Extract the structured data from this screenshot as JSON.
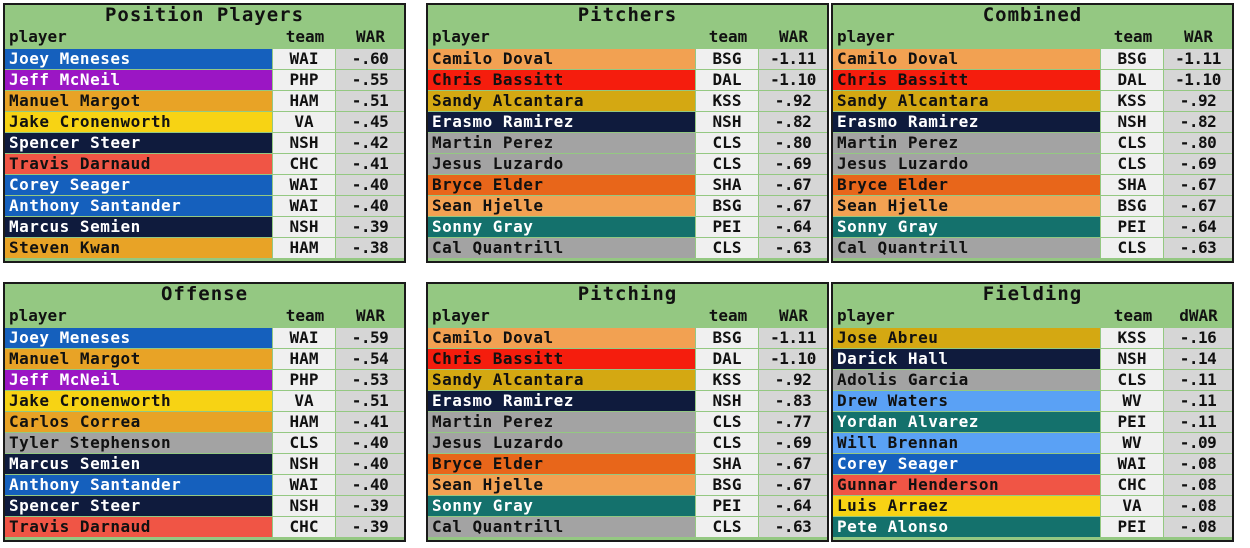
{
  "panels": [
    {
      "title": "Position Players",
      "headers": {
        "player": "player",
        "team": "team",
        "stat": "WAR"
      },
      "rows": [
        {
          "name": "Joey Meneses",
          "team": "WAI",
          "value": "-.60",
          "bg": "#1560bd",
          "fg": "#ffffff"
        },
        {
          "name": "Jeff McNeil",
          "team": "PHP",
          "value": "-.55",
          "bg": "#9b16c4",
          "fg": "#ffffff"
        },
        {
          "name": "Manuel Margot",
          "team": "HAM",
          "value": "-.51",
          "bg": "#e8a326",
          "fg": "#111111"
        },
        {
          "name": "Jake Cronenworth",
          "team": "VA",
          "value": "-.45",
          "bg": "#f7d314",
          "fg": "#111111"
        },
        {
          "name": "Spencer Steer",
          "team": "NSH",
          "value": "-.42",
          "bg": "#0f1b3d",
          "fg": "#ffffff"
        },
        {
          "name": "Travis Darnaud",
          "team": "CHC",
          "value": "-.41",
          "bg": "#f05545",
          "fg": "#111111"
        },
        {
          "name": "Corey Seager",
          "team": "WAI",
          "value": "-.40",
          "bg": "#1560bd",
          "fg": "#ffffff"
        },
        {
          "name": "Anthony Santander",
          "team": "WAI",
          "value": "-.40",
          "bg": "#1560bd",
          "fg": "#ffffff"
        },
        {
          "name": "Marcus Semien",
          "team": "NSH",
          "value": "-.39",
          "bg": "#0f1b3d",
          "fg": "#ffffff"
        },
        {
          "name": "Steven Kwan",
          "team": "HAM",
          "value": "-.38",
          "bg": "#e8a326",
          "fg": "#111111"
        }
      ]
    },
    {
      "title": "Pitchers",
      "headers": {
        "player": "player",
        "team": "team",
        "stat": "WAR"
      },
      "rows": [
        {
          "name": "Camilo Doval",
          "team": "BSG",
          "value": "-1.11",
          "bg": "#f2a152",
          "fg": "#111111"
        },
        {
          "name": "Chris Bassitt",
          "team": "DAL",
          "value": "-1.10",
          "bg": "#f51d0d",
          "fg": "#111111"
        },
        {
          "name": "Sandy Alcantara",
          "team": "KSS",
          "value": "-.92",
          "bg": "#d4a812",
          "fg": "#111111"
        },
        {
          "name": "Erasmo Ramirez",
          "team": "NSH",
          "value": "-.82",
          "bg": "#0f1b3d",
          "fg": "#ffffff"
        },
        {
          "name": "Martin Perez",
          "team": "CLS",
          "value": "-.80",
          "bg": "#a3a3a3",
          "fg": "#111111"
        },
        {
          "name": "Jesus Luzardo",
          "team": "CLS",
          "value": "-.69",
          "bg": "#a3a3a3",
          "fg": "#111111"
        },
        {
          "name": "Bryce Elder",
          "team": "SHA",
          "value": "-.67",
          "bg": "#e8661a",
          "fg": "#111111"
        },
        {
          "name": "Sean Hjelle",
          "team": "BSG",
          "value": "-.67",
          "bg": "#f2a152",
          "fg": "#111111"
        },
        {
          "name": "Sonny Gray",
          "team": "PEI",
          "value": "-.64",
          "bg": "#14716c",
          "fg": "#ffffff"
        },
        {
          "name": "Cal Quantrill",
          "team": "CLS",
          "value": "-.63",
          "bg": "#a3a3a3",
          "fg": "#111111"
        }
      ]
    },
    {
      "title": "Combined",
      "headers": {
        "player": "player",
        "team": "team",
        "stat": "WAR"
      },
      "rows": [
        {
          "name": "Camilo Doval",
          "team": "BSG",
          "value": "-1.11",
          "bg": "#f2a152",
          "fg": "#111111"
        },
        {
          "name": "Chris Bassitt",
          "team": "DAL",
          "value": "-1.10",
          "bg": "#f51d0d",
          "fg": "#111111"
        },
        {
          "name": "Sandy Alcantara",
          "team": "KSS",
          "value": "-.92",
          "bg": "#d4a812",
          "fg": "#111111"
        },
        {
          "name": "Erasmo Ramirez",
          "team": "NSH",
          "value": "-.82",
          "bg": "#0f1b3d",
          "fg": "#ffffff"
        },
        {
          "name": "Martin Perez",
          "team": "CLS",
          "value": "-.80",
          "bg": "#a3a3a3",
          "fg": "#111111"
        },
        {
          "name": "Jesus Luzardo",
          "team": "CLS",
          "value": "-.69",
          "bg": "#a3a3a3",
          "fg": "#111111"
        },
        {
          "name": "Bryce Elder",
          "team": "SHA",
          "value": "-.67",
          "bg": "#e8661a",
          "fg": "#111111"
        },
        {
          "name": "Sean Hjelle",
          "team": "BSG",
          "value": "-.67",
          "bg": "#f2a152",
          "fg": "#111111"
        },
        {
          "name": "Sonny Gray",
          "team": "PEI",
          "value": "-.64",
          "bg": "#14716c",
          "fg": "#ffffff"
        },
        {
          "name": "Cal Quantrill",
          "team": "CLS",
          "value": "-.63",
          "bg": "#a3a3a3",
          "fg": "#111111"
        }
      ]
    },
    {
      "title": "Offense",
      "headers": {
        "player": "player",
        "team": "team",
        "stat": "WAR"
      },
      "rows": [
        {
          "name": "Joey Meneses",
          "team": "WAI",
          "value": "-.59",
          "bg": "#1560bd",
          "fg": "#ffffff"
        },
        {
          "name": "Manuel Margot",
          "team": "HAM",
          "value": "-.54",
          "bg": "#e8a326",
          "fg": "#111111"
        },
        {
          "name": "Jeff McNeil",
          "team": "PHP",
          "value": "-.53",
          "bg": "#9b16c4",
          "fg": "#ffffff"
        },
        {
          "name": "Jake Cronenworth",
          "team": "VA",
          "value": "-.51",
          "bg": "#f7d314",
          "fg": "#111111"
        },
        {
          "name": "Carlos Correa",
          "team": "HAM",
          "value": "-.41",
          "bg": "#e8a326",
          "fg": "#111111"
        },
        {
          "name": "Tyler Stephenson",
          "team": "CLS",
          "value": "-.40",
          "bg": "#a3a3a3",
          "fg": "#111111"
        },
        {
          "name": "Marcus Semien",
          "team": "NSH",
          "value": "-.40",
          "bg": "#0f1b3d",
          "fg": "#ffffff"
        },
        {
          "name": "Anthony Santander",
          "team": "WAI",
          "value": "-.40",
          "bg": "#1560bd",
          "fg": "#ffffff"
        },
        {
          "name": "Spencer Steer",
          "team": "NSH",
          "value": "-.39",
          "bg": "#0f1b3d",
          "fg": "#ffffff"
        },
        {
          "name": "Travis Darnaud",
          "team": "CHC",
          "value": "-.39",
          "bg": "#f05545",
          "fg": "#111111"
        }
      ]
    },
    {
      "title": "Pitching",
      "headers": {
        "player": "player",
        "team": "team",
        "stat": "WAR"
      },
      "rows": [
        {
          "name": "Camilo Doval",
          "team": "BSG",
          "value": "-1.11",
          "bg": "#f2a152",
          "fg": "#111111"
        },
        {
          "name": "Chris Bassitt",
          "team": "DAL",
          "value": "-1.10",
          "bg": "#f51d0d",
          "fg": "#111111"
        },
        {
          "name": "Sandy Alcantara",
          "team": "KSS",
          "value": "-.92",
          "bg": "#d4a812",
          "fg": "#111111"
        },
        {
          "name": "Erasmo Ramirez",
          "team": "NSH",
          "value": "-.83",
          "bg": "#0f1b3d",
          "fg": "#ffffff"
        },
        {
          "name": "Martin Perez",
          "team": "CLS",
          "value": "-.77",
          "bg": "#a3a3a3",
          "fg": "#111111"
        },
        {
          "name": "Jesus Luzardo",
          "team": "CLS",
          "value": "-.69",
          "bg": "#a3a3a3",
          "fg": "#111111"
        },
        {
          "name": "Bryce Elder",
          "team": "SHA",
          "value": "-.67",
          "bg": "#e8661a",
          "fg": "#111111"
        },
        {
          "name": "Sean Hjelle",
          "team": "BSG",
          "value": "-.67",
          "bg": "#f2a152",
          "fg": "#111111"
        },
        {
          "name": "Sonny Gray",
          "team": "PEI",
          "value": "-.64",
          "bg": "#14716c",
          "fg": "#ffffff"
        },
        {
          "name": "Cal Quantrill",
          "team": "CLS",
          "value": "-.63",
          "bg": "#a3a3a3",
          "fg": "#111111"
        }
      ]
    },
    {
      "title": "Fielding",
      "headers": {
        "player": "player",
        "team": "team",
        "stat": "dWAR"
      },
      "rows": [
        {
          "name": "Jose Abreu",
          "team": "KSS",
          "value": "-.16",
          "bg": "#d4a812",
          "fg": "#111111"
        },
        {
          "name": "Darick Hall",
          "team": "NSH",
          "value": "-.14",
          "bg": "#0f1b3d",
          "fg": "#ffffff"
        },
        {
          "name": "Adolis Garcia",
          "team": "CLS",
          "value": "-.11",
          "bg": "#a3a3a3",
          "fg": "#111111"
        },
        {
          "name": "Drew Waters",
          "team": "WV",
          "value": "-.11",
          "bg": "#5aa1f5",
          "fg": "#111111"
        },
        {
          "name": "Yordan Alvarez",
          "team": "PEI",
          "value": "-.11",
          "bg": "#14716c",
          "fg": "#ffffff"
        },
        {
          "name": "Will Brennan",
          "team": "WV",
          "value": "-.09",
          "bg": "#5aa1f5",
          "fg": "#111111"
        },
        {
          "name": "Corey Seager",
          "team": "WAI",
          "value": "-.08",
          "bg": "#1560bd",
          "fg": "#ffffff"
        },
        {
          "name": "Gunnar Henderson",
          "team": "CHC",
          "value": "-.08",
          "bg": "#f05545",
          "fg": "#111111"
        },
        {
          "name": "Luis Arraez",
          "team": "VA",
          "value": "-.08",
          "bg": "#f7d314",
          "fg": "#111111"
        },
        {
          "name": "Pete Alonso",
          "team": "PEI",
          "value": "-.08",
          "bg": "#14716c",
          "fg": "#ffffff"
        }
      ]
    }
  ]
}
